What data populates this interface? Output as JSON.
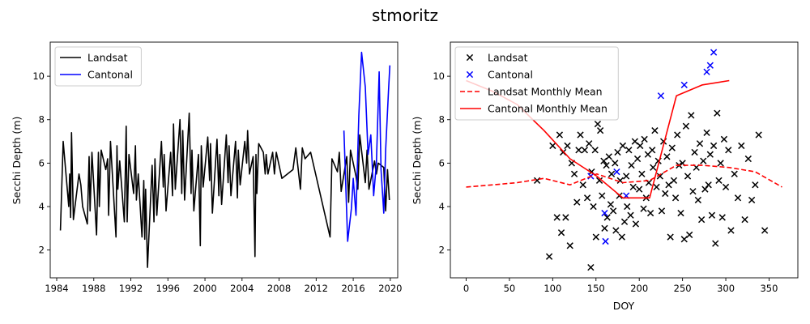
{
  "figure": {
    "title": "stmoritz"
  },
  "chart_data": [
    {
      "type": "line",
      "xlabel": "",
      "ylabel": "Secchi Depth (m)",
      "xlim": [
        1983.3,
        2020.8
      ],
      "ylim": [
        0.72,
        11.57
      ],
      "xticks": [
        1984,
        1988,
        1992,
        1996,
        2000,
        2004,
        2008,
        2012,
        2016,
        2020
      ],
      "xtick_labels": [
        "1984",
        "1988",
        "1992",
        "1996",
        "2000",
        "2004",
        "2008",
        "2012",
        "2016",
        "2020"
      ],
      "yticks": [
        2,
        4,
        6,
        8,
        10
      ],
      "ytick_labels": [
        "2",
        "4",
        "6",
        "8",
        "10"
      ],
      "legend": "top-left",
      "grid": false,
      "series": [
        {
          "name": "Landsat",
          "color": "#000000",
          "x": [
            1984.4,
            1984.7,
            1985.3,
            1985.4,
            1985.5,
            1985.6,
            1985.8,
            1986.4,
            1986.6,
            1986.8,
            1987.3,
            1987.5,
            1987.6,
            1987.8,
            1988.3,
            1988.5,
            1988.6,
            1988.8,
            1989.3,
            1989.5,
            1989.6,
            1989.8,
            1990.4,
            1990.5,
            1990.6,
            1990.8,
            1991.3,
            1991.5,
            1991.6,
            1991.8,
            1992.3,
            1992.5,
            1992.6,
            1992.8,
            1993.2,
            1993.4,
            1993.5,
            1993.6,
            1993.8,
            1994.3,
            1994.5,
            1994.6,
            1994.8,
            1995.3,
            1995.5,
            1995.6,
            1995.8,
            1996.3,
            1996.5,
            1996.6,
            1996.8,
            1997.3,
            1997.5,
            1997.6,
            1997.8,
            1998.3,
            1998.5,
            1998.6,
            1998.8,
            1999.3,
            1999.5,
            1999.6,
            1999.8,
            2000.3,
            2000.5,
            2000.6,
            2000.8,
            2001.3,
            2001.5,
            2001.6,
            2001.8,
            2002.3,
            2002.5,
            2002.6,
            2002.8,
            2003.3,
            2003.5,
            2003.6,
            2003.8,
            2004.3,
            2004.5,
            2004.6,
            2004.8,
            2005.2,
            2005.4,
            2005.5,
            2005.6,
            2005.8,
            2006.3,
            2006.5,
            2006.6,
            2006.8,
            2007.3,
            2007.5,
            2007.7,
            2008.3,
            2009.5,
            2009.8,
            2010.3,
            2010.5,
            2010.8,
            2011.4,
            2013.5,
            2013.7,
            2014.3,
            2014.5,
            2014.7,
            2015.3,
            2015.5,
            2015.7,
            2016.3,
            2016.5,
            2016.7,
            2017.3,
            2017.5,
            2017.7,
            2018.3,
            2018.5,
            2018.7,
            2019.3,
            2019.5,
            2019.7,
            2019.9
          ],
          "y": [
            2.9,
            7.0,
            4.0,
            5.5,
            3.5,
            7.4,
            3.4,
            5.5,
            5.0,
            4.0,
            3.2,
            6.3,
            3.8,
            6.5,
            2.7,
            6.5,
            4.0,
            6.6,
            5.7,
            6.2,
            3.6,
            7.0,
            2.6,
            6.8,
            4.8,
            6.1,
            3.3,
            7.7,
            3.3,
            6.4,
            4.6,
            6.8,
            4.3,
            5.5,
            2.6,
            5.2,
            2.5,
            4.8,
            1.2,
            5.9,
            3.3,
            6.2,
            3.6,
            7.0,
            4.9,
            6.4,
            3.8,
            6.5,
            4.5,
            7.8,
            4.8,
            8.0,
            4.6,
            7.5,
            4.3,
            8.3,
            4.6,
            6.6,
            3.8,
            6.4,
            2.2,
            6.8,
            4.9,
            7.2,
            5.2,
            6.9,
            3.7,
            7.1,
            4.5,
            6.4,
            4.1,
            7.3,
            5.1,
            6.8,
            4.5,
            7.0,
            4.4,
            6.6,
            5.0,
            7.0,
            6.0,
            7.5,
            5.5,
            6.3,
            1.7,
            6.4,
            4.6,
            6.9,
            6.5,
            5.5,
            6.4,
            5.5,
            6.5,
            5.5,
            6.5,
            5.3,
            5.7,
            6.7,
            4.8,
            6.7,
            6.2,
            6.5,
            2.6,
            6.2,
            5.6,
            6.5,
            4.7,
            6.3,
            4.2,
            6.6,
            5.4,
            4.8,
            7.3,
            5.1,
            6.6,
            4.8,
            6.1,
            5.5,
            6.0,
            5.8,
            3.8,
            5.7,
            4.3
          ]
        },
        {
          "name": "Cantonal",
          "color": "#0000ff",
          "x": [
            2015.0,
            2015.4,
            2015.8,
            2016.0,
            2016.3,
            2016.6,
            2016.9,
            2017.3,
            2017.6,
            2017.9,
            2018.2,
            2018.5,
            2018.8,
            2019.0,
            2019.3,
            2019.5,
            2019.8,
            2019.95
          ],
          "y": [
            7.5,
            2.4,
            3.9,
            5.3,
            3.6,
            8.2,
            11.1,
            9.5,
            6.4,
            7.3,
            4.5,
            6.0,
            10.2,
            5.7,
            3.7,
            6.6,
            9.3,
            10.5
          ]
        }
      ]
    },
    {
      "type": "scatter",
      "xlabel": "DOY",
      "ylabel": "Secchi Depth (m)",
      "xlim": [
        -18.25,
        383.25
      ],
      "ylim": [
        0.72,
        11.57
      ],
      "xticks": [
        0,
        50,
        100,
        150,
        200,
        250,
        300,
        350
      ],
      "xtick_labels": [
        "0",
        "50",
        "100",
        "150",
        "200",
        "250",
        "300",
        "350"
      ],
      "yticks": [
        2,
        4,
        6,
        8,
        10
      ],
      "ytick_labels": [
        "2",
        "4",
        "6",
        "8",
        "10"
      ],
      "legend": "top-left",
      "grid": false,
      "series": [
        {
          "name": "Landsat",
          "color": "#000000",
          "marker": "x",
          "x": [
            82,
            96,
            100,
            105,
            108,
            110,
            112,
            115,
            117,
            120,
            122,
            125,
            128,
            130,
            132,
            135,
            137,
            140,
            142,
            144,
            145,
            147,
            149,
            150,
            152,
            154,
            155,
            157,
            159,
            160,
            162,
            163,
            165,
            167,
            168,
            170,
            172,
            173,
            175,
            177,
            178,
            180,
            181,
            183,
            185,
            186,
            188,
            190,
            191,
            193,
            195,
            196,
            198,
            200,
            201,
            203,
            205,
            206,
            208,
            210,
            211,
            213,
            215,
            216,
            218,
            220,
            222,
            224,
            226,
            228,
            230,
            232,
            234,
            236,
            238,
            240,
            242,
            244,
            246,
            248,
            250,
            252,
            254,
            256,
            258,
            260,
            262,
            264,
            266,
            268,
            270,
            272,
            274,
            276,
            278,
            280,
            282,
            284,
            286,
            288,
            290,
            292,
            294,
            296,
            298,
            300,
            303,
            306,
            310,
            314,
            318,
            322,
            326,
            330,
            334,
            338,
            345
          ],
          "y": [
            5.2,
            1.7,
            6.8,
            3.5,
            7.3,
            2.8,
            6.5,
            3.5,
            6.8,
            2.2,
            6.0,
            5.5,
            4.2,
            6.6,
            7.3,
            5.0,
            6.6,
            4.4,
            6.9,
            1.2,
            5.6,
            4.0,
            6.6,
            2.6,
            7.8,
            5.2,
            7.5,
            4.5,
            6.1,
            3.0,
            5.9,
            3.5,
            6.3,
            4.1,
            5.5,
            3.8,
            6.0,
            2.9,
            6.5,
            4.5,
            5.2,
            2.6,
            6.8,
            3.3,
            5.4,
            4.0,
            6.6,
            3.6,
            5.9,
            4.9,
            7.0,
            3.2,
            6.2,
            4.8,
            6.8,
            5.5,
            3.9,
            7.1,
            4.4,
            6.4,
            5.1,
            3.7,
            6.6,
            5.8,
            7.5,
            4.9,
            6.1,
            5.4,
            3.8,
            7.0,
            4.6,
            6.3,
            5.0,
            2.6,
            6.7,
            5.2,
            4.4,
            7.3,
            5.9,
            3.7,
            6.0,
            2.5,
            7.7,
            5.4,
            2.7,
            8.2,
            4.7,
            6.5,
            5.8,
            4.3,
            6.9,
            3.4,
            6.1,
            4.8,
            7.4,
            5.0,
            6.4,
            3.6,
            6.8,
            2.3,
            8.3,
            5.2,
            6.0,
            3.5,
            7.1,
            4.9,
            6.6,
            2.9,
            5.5,
            4.4,
            6.8,
            3.4,
            6.2,
            4.3,
            5.0,
            7.3,
            2.9
          ]
        },
        {
          "name": "Cantonal",
          "color": "#0000ff",
          "marker": "x",
          "x": [
            144,
            160,
            161,
            174,
            185,
            225,
            252,
            278,
            282,
            286
          ],
          "y": [
            5.4,
            3.7,
            2.4,
            5.6,
            4.5,
            9.1,
            9.6,
            10.2,
            10.5,
            11.1
          ]
        },
        {
          "name": "Landsat Monthly Mean",
          "color": "#ff0000",
          "style": "dashed",
          "x": [
            0,
            31,
            59,
            90,
            120,
            151,
            181,
            212,
            243,
            273,
            304,
            334,
            365
          ],
          "y": [
            4.9,
            5.0,
            5.1,
            5.3,
            5.0,
            5.5,
            5.1,
            5.2,
            5.9,
            5.9,
            5.8,
            5.6,
            4.9
          ]
        },
        {
          "name": "Cantonal Monthly Mean",
          "color": "#ff0000",
          "style": "solid",
          "x": [
            0,
            31,
            59,
            90,
            120,
            151,
            181,
            212,
            243,
            273,
            304
          ],
          "y": [
            9.8,
            9.3,
            8.7,
            7.5,
            6.2,
            5.4,
            4.4,
            4.4,
            9.1,
            9.6,
            9.8
          ]
        }
      ]
    }
  ]
}
